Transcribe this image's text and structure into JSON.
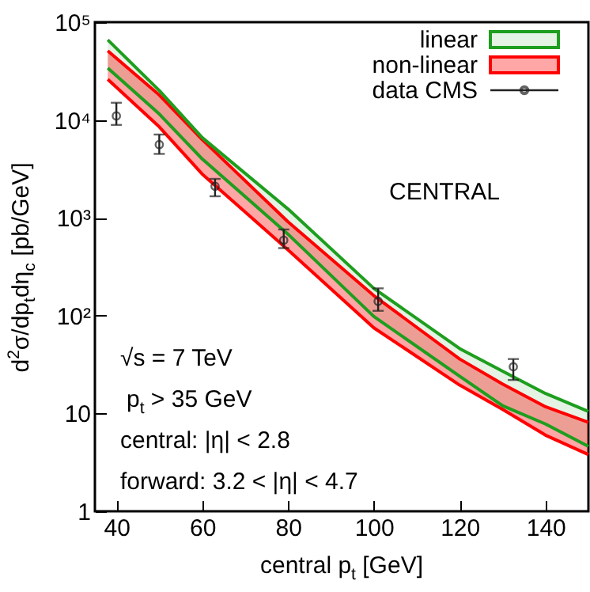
{
  "chart_data": {
    "type": "line",
    "xlabel": "central p$_{t}$ [GeV]",
    "ylabel": "d$^{2}$σ/dp$_{t}$dη$_{c}$ [pb/GeV]",
    "log": "y",
    "xlim": [
      35,
      150
    ],
    "xticks": [
      40,
      60,
      80,
      100,
      120,
      140
    ],
    "ylim": [
      1,
      100000
    ],
    "yticks": [
      1,
      10,
      {
        "value": 100,
        "label": "10²"
      },
      {
        "value": 1000,
        "label": "10³"
      },
      {
        "value": 10000,
        "label": "10⁴"
      },
      {
        "value": 100000,
        "label": "10⁵"
      }
    ],
    "legend": "top right",
    "grid": false,
    "annotations": [
      "CENTRAL",
      "√s = 7 TeV",
      "p$_{t}$ > 35 GeV",
      "central: |η| < 2.8",
      "forward: 3.2 < |η| < 4.7"
    ],
    "series": [
      {
        "name": "linear",
        "color": "#1e9e1e",
        "x": [
          38,
          50,
          60,
          80,
          100,
          120,
          130,
          140,
          150
        ],
        "values": [
          66000,
          20000,
          6600,
          1230,
          190,
          46,
          27,
          16,
          10.5
        ],
        "lower": [
          34000,
          11500,
          4000,
          680,
          98,
          24,
          12,
          7.8,
          4.6
        ],
        "upper": [
          66000,
          20000,
          6600,
          1230,
          190,
          46,
          27,
          16,
          10.5
        ]
      },
      {
        "color": "#1e9e1e",
        "x": [
          38,
          50,
          60,
          80,
          100,
          120,
          130,
          140,
          150
        ],
        "values": [
          34000,
          11500,
          4000,
          680,
          98,
          24,
          12,
          7.8,
          4.6
        ]
      },
      {
        "name": "non-linear",
        "color": "#ff0000",
        "x": [
          38,
          50,
          60,
          80,
          100,
          120,
          130,
          140,
          150
        ],
        "values": [
          51000,
          18000,
          6300,
          910,
          160,
          36,
          20,
          11.7,
          8.1
        ],
        "lower": [
          26000,
          8500,
          2800,
          470,
          75,
          19.5,
          11,
          6,
          3.8
        ],
        "upper": [
          51000,
          18000,
          6300,
          910,
          160,
          36,
          20,
          11.7,
          8.1
        ]
      },
      {
        "color": "#ff0000",
        "x": [
          38,
          50,
          60,
          80,
          100,
          120,
          130,
          140,
          150
        ],
        "values": [
          26000,
          8500,
          2800,
          470,
          75,
          19.5,
          11,
          6,
          3.8
        ]
      },
      {
        "name": "data CMS",
        "type": "scatter",
        "color": "#222222",
        "marker": "circle",
        "x": [
          40,
          50,
          63,
          79,
          101,
          132.5
        ],
        "values": [
          11000,
          5600,
          2100,
          590,
          140,
          30
        ],
        "errors": [
          [
            8900,
            15000
          ],
          [
            4500,
            7100
          ],
          [
            1660,
            2500
          ],
          [
            490,
            760
          ],
          [
            112,
            190
          ],
          [
            22,
            36
          ]
        ]
      }
    ]
  }
}
